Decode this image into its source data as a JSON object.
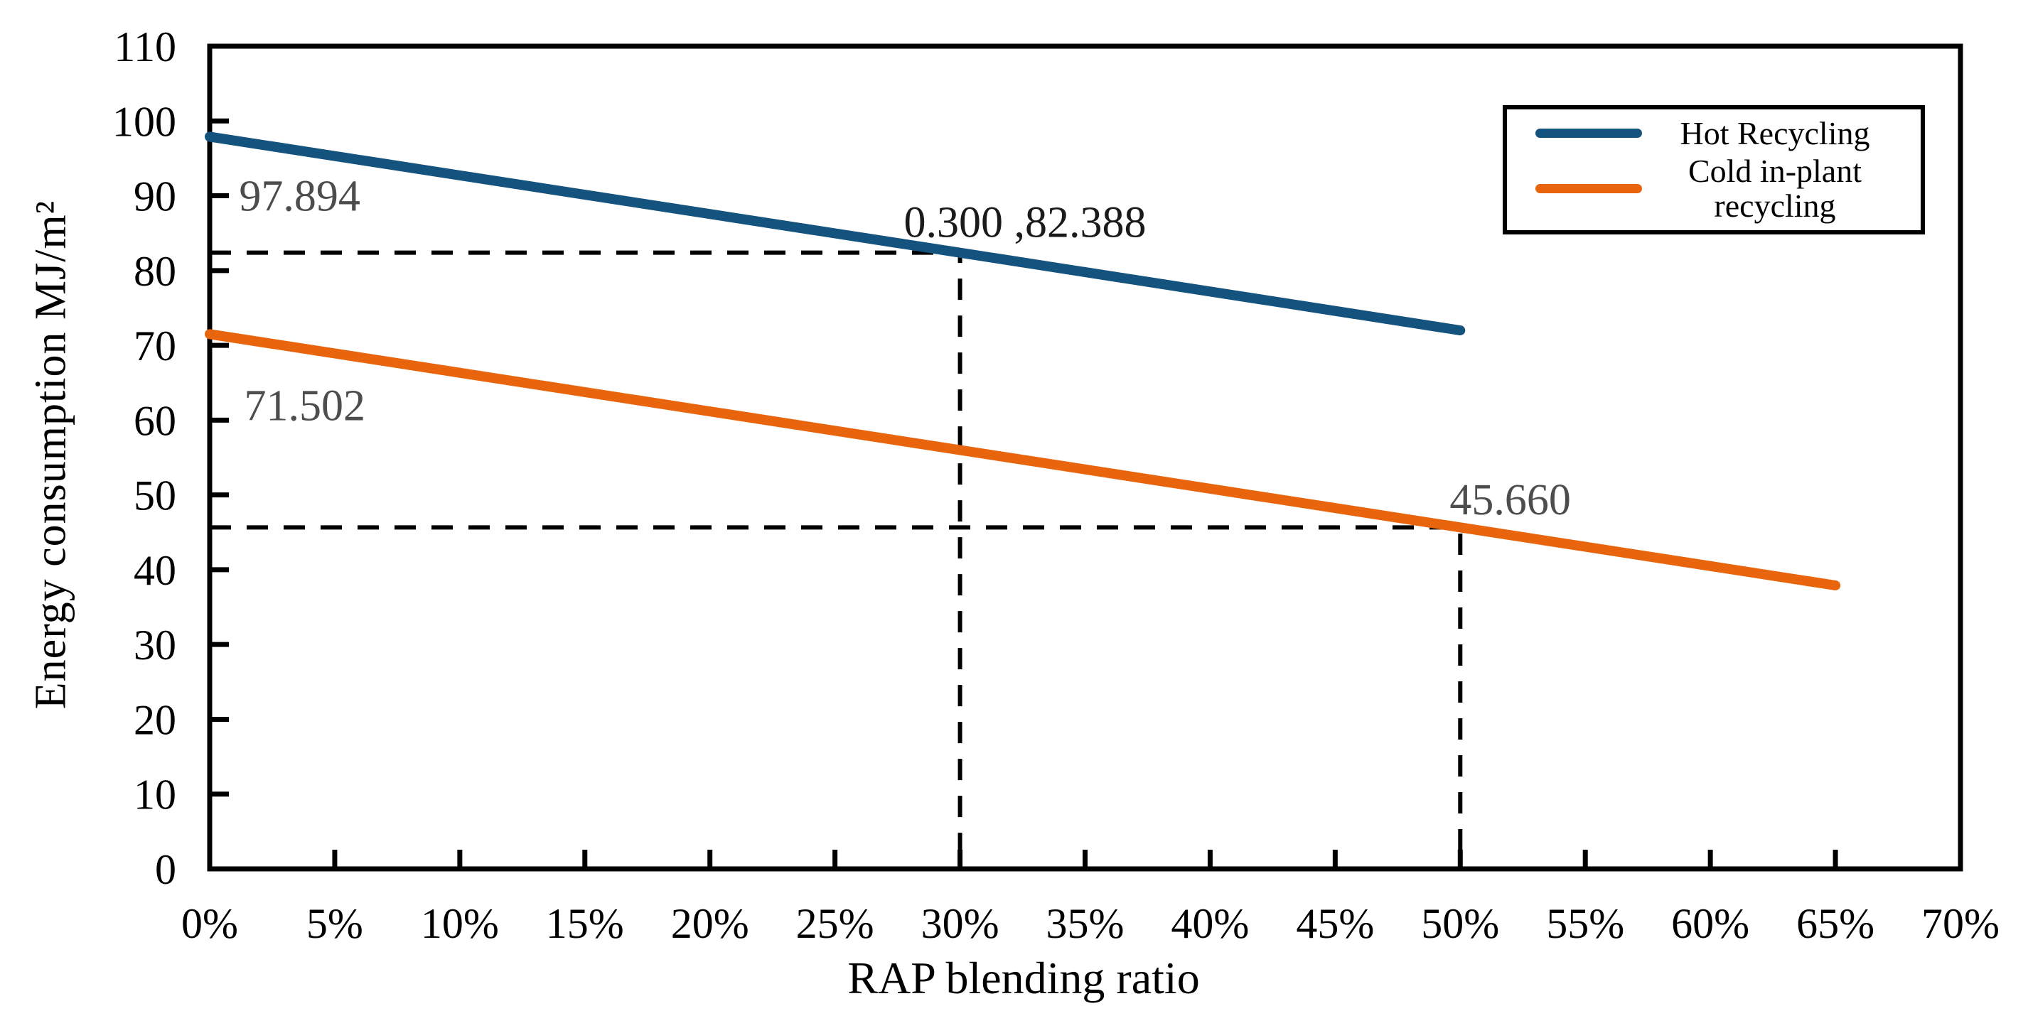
{
  "chart_data": {
    "type": "line",
    "title": "",
    "xlabel": "RAP blending ratio",
    "ylabel": "Energy consumption MJ/m²",
    "xlim": [
      0,
      0.7
    ],
    "ylim": [
      0,
      110
    ],
    "grid": false,
    "legend_position": "top-right",
    "x_ticks": [
      {
        "value": 0.0,
        "label": "0%"
      },
      {
        "value": 0.05,
        "label": "5%"
      },
      {
        "value": 0.1,
        "label": "10%"
      },
      {
        "value": 0.15,
        "label": "15%"
      },
      {
        "value": 0.2,
        "label": "20%"
      },
      {
        "value": 0.25,
        "label": "25%"
      },
      {
        "value": 0.3,
        "label": "30%"
      },
      {
        "value": 0.35,
        "label": "35%"
      },
      {
        "value": 0.4,
        "label": "40%"
      },
      {
        "value": 0.45,
        "label": "45%"
      },
      {
        "value": 0.5,
        "label": "50%"
      },
      {
        "value": 0.55,
        "label": "55%"
      },
      {
        "value": 0.6,
        "label": "60%"
      },
      {
        "value": 0.65,
        "label": "65%"
      },
      {
        "value": 0.7,
        "label": "70%"
      }
    ],
    "y_ticks": [
      {
        "value": 0,
        "label": "0"
      },
      {
        "value": 10,
        "label": "10"
      },
      {
        "value": 20,
        "label": "20"
      },
      {
        "value": 30,
        "label": "30"
      },
      {
        "value": 40,
        "label": "40"
      },
      {
        "value": 50,
        "label": "50"
      },
      {
        "value": 60,
        "label": "60"
      },
      {
        "value": 70,
        "label": "70"
      },
      {
        "value": 80,
        "label": "80"
      },
      {
        "value": 90,
        "label": "90"
      },
      {
        "value": 100,
        "label": "100"
      },
      {
        "value": 110,
        "label": "110"
      }
    ],
    "series": [
      {
        "name": "Hot Recycling",
        "slug": "hot-recycling",
        "color": "#14537e",
        "points": [
          [
            0.0,
            97.894
          ],
          [
            0.3,
            82.388
          ],
          [
            0.5,
            72.0
          ]
        ]
      },
      {
        "name": "Cold in-plant recycling",
        "slug": "cold-in-plant-recycling",
        "color": "#e8650d",
        "points": [
          [
            0.0,
            71.502
          ],
          [
            0.5,
            45.66
          ],
          [
            0.65,
            37.9
          ]
        ]
      }
    ],
    "guides": [
      {
        "name": "guide-hot-recycling-30pct",
        "points": [
          [
            0,
            82.388
          ],
          [
            0.3,
            82.388
          ],
          [
            0.3,
            0
          ]
        ]
      },
      {
        "name": "guide-cold-recycling-50pct",
        "points": [
          [
            0,
            45.66
          ],
          [
            0.5,
            45.66
          ],
          [
            0.5,
            0
          ]
        ]
      }
    ],
    "annotations": [
      {
        "name": "hot-recycling-start-value",
        "text": "97.894",
        "x": 0.036,
        "y": 90.0,
        "color": "#4d4d4d"
      },
      {
        "name": "cold-recycling-start-value",
        "text": "71.502",
        "x": 0.038,
        "y": 62.0,
        "color": "#4d4d4d"
      },
      {
        "name": "hot-recycling-30pct-point",
        "text": "0.300 ,82.388",
        "x": 0.326,
        "y": 86.5,
        "color": "#1a1a1a"
      },
      {
        "name": "cold-recycling-50pct-value",
        "text": "45.660",
        "x": 0.52,
        "y": 49.4,
        "color": "#4d4d4d"
      }
    ]
  },
  "legend": {
    "items": [
      {
        "label": "Hot Recycling"
      },
      {
        "label": "Cold in-plant recycling"
      }
    ]
  }
}
